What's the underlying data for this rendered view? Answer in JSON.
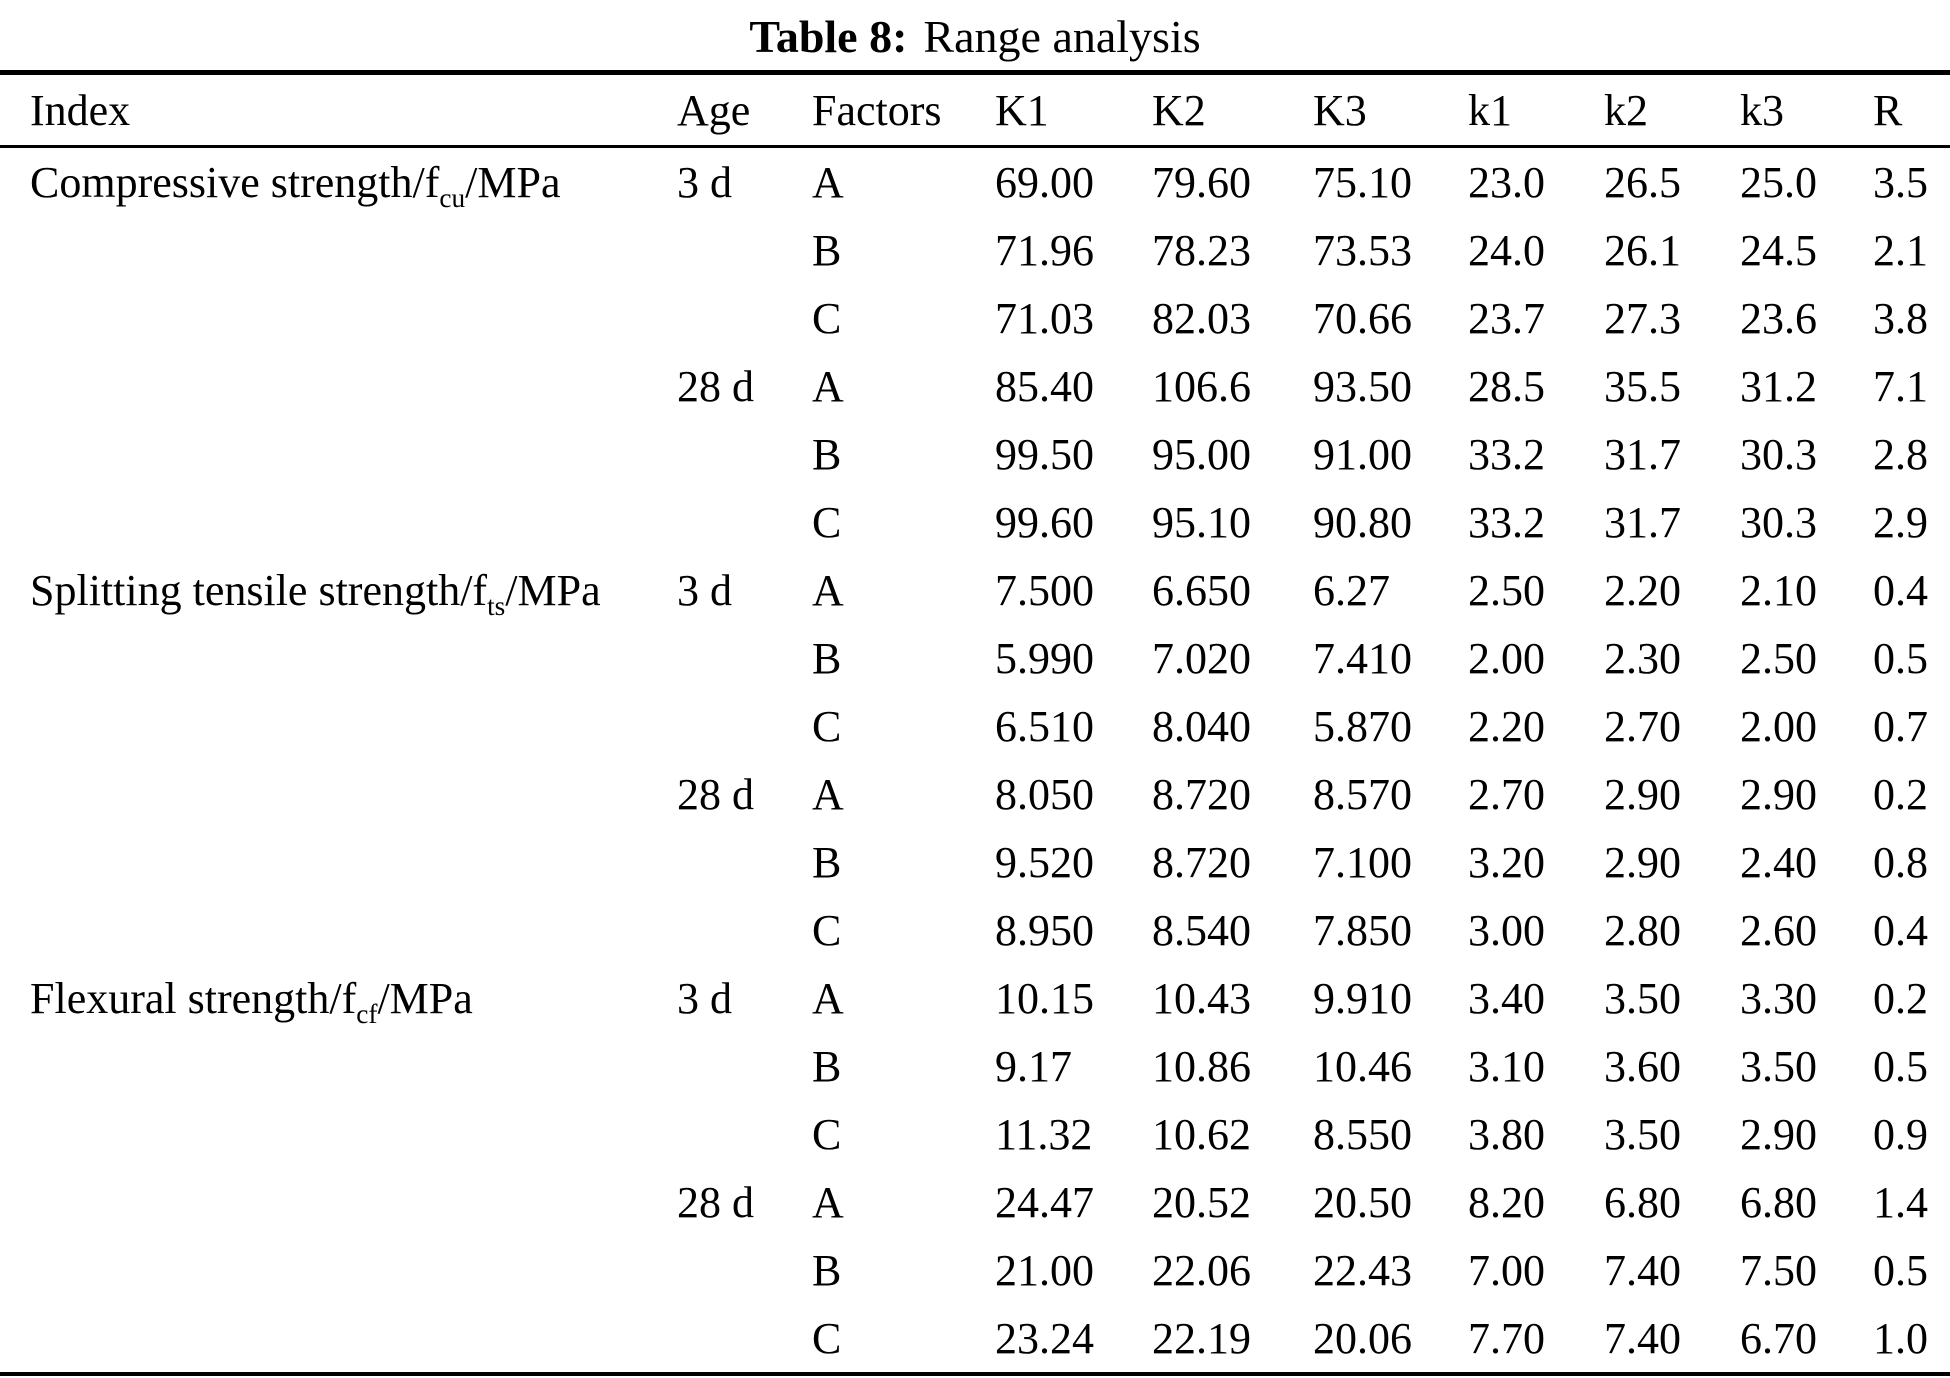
{
  "title": {
    "prefix": "Table 8:",
    "text": "Range analysis"
  },
  "table": {
    "headers": [
      "Index",
      "Age",
      "Factors",
      "K1",
      "K2",
      "K3",
      "k1",
      "k2",
      "k3",
      "R"
    ],
    "sections": [
      {
        "index": {
          "pre": "Compressive strength/f",
          "sub": "cu",
          "post": "/MPa"
        },
        "groups": [
          {
            "age": "3 d",
            "rows": [
              {
                "factor": "A",
                "values": [
                  "69.00",
                  "79.60",
                  "75.10",
                  "23.0",
                  "26.5",
                  "25.0",
                  "3.5"
                ]
              },
              {
                "factor": "B",
                "values": [
                  "71.96",
                  "78.23",
                  "73.53",
                  "24.0",
                  "26.1",
                  "24.5",
                  "2.1"
                ]
              },
              {
                "factor": "C",
                "values": [
                  "71.03",
                  "82.03",
                  "70.66",
                  "23.7",
                  "27.3",
                  "23.6",
                  "3.8"
                ]
              }
            ]
          },
          {
            "age": "28 d",
            "rows": [
              {
                "factor": "A",
                "values": [
                  "85.40",
                  "106.6",
                  "93.50",
                  "28.5",
                  "35.5",
                  "31.2",
                  "7.1"
                ]
              },
              {
                "factor": "B",
                "values": [
                  "99.50",
                  "95.00",
                  "91.00",
                  "33.2",
                  "31.7",
                  "30.3",
                  "2.8"
                ]
              },
              {
                "factor": "C",
                "values": [
                  "99.60",
                  "95.10",
                  "90.80",
                  "33.2",
                  "31.7",
                  "30.3",
                  "2.9"
                ]
              }
            ]
          }
        ]
      },
      {
        "index": {
          "pre": "Splitting tensile strength/f",
          "sub": "ts",
          "post": "/MPa"
        },
        "groups": [
          {
            "age": "3 d",
            "rows": [
              {
                "factor": "A",
                "values": [
                  "7.500",
                  "6.650",
                  "6.27",
                  "2.50",
                  "2.20",
                  "2.10",
                  "0.4"
                ]
              },
              {
                "factor": "B",
                "values": [
                  "5.990",
                  "7.020",
                  "7.410",
                  "2.00",
                  "2.30",
                  "2.50",
                  "0.5"
                ]
              },
              {
                "factor": "C",
                "values": [
                  "6.510",
                  "8.040",
                  "5.870",
                  "2.20",
                  "2.70",
                  "2.00",
                  "0.7"
                ]
              }
            ]
          },
          {
            "age": "28 d",
            "rows": [
              {
                "factor": "A",
                "values": [
                  "8.050",
                  "8.720",
                  "8.570",
                  "2.70",
                  "2.90",
                  "2.90",
                  "0.2"
                ]
              },
              {
                "factor": "B",
                "values": [
                  "9.520",
                  "8.720",
                  "7.100",
                  "3.20",
                  "2.90",
                  "2.40",
                  "0.8"
                ]
              },
              {
                "factor": "C",
                "values": [
                  "8.950",
                  "8.540",
                  "7.850",
                  "3.00",
                  "2.80",
                  "2.60",
                  "0.4"
                ]
              }
            ]
          }
        ]
      },
      {
        "index": {
          "pre": "Flexural strength/f",
          "sub": "cf",
          "post": "/MPa"
        },
        "groups": [
          {
            "age": "3 d",
            "rows": [
              {
                "factor": "A",
                "values": [
                  "10.15",
                  "10.43",
                  "9.910",
                  "3.40",
                  "3.50",
                  "3.30",
                  "0.2"
                ]
              },
              {
                "factor": "B",
                "values": [
                  "9.17",
                  "10.86",
                  "10.46",
                  "3.10",
                  "3.60",
                  "3.50",
                  "0.5"
                ]
              },
              {
                "factor": "C",
                "values": [
                  "11.32",
                  "10.62",
                  "8.550",
                  "3.80",
                  "3.50",
                  "2.90",
                  "0.9"
                ]
              }
            ]
          },
          {
            "age": "28 d",
            "rows": [
              {
                "factor": "A",
                "values": [
                  "24.47",
                  "20.52",
                  "20.50",
                  "8.20",
                  "6.80",
                  "6.80",
                  "1.4"
                ]
              },
              {
                "factor": "B",
                "values": [
                  "21.00",
                  "22.06",
                  "22.43",
                  "7.00",
                  "7.40",
                  "7.50",
                  "0.5"
                ]
              },
              {
                "factor": "C",
                "values": [
                  "23.24",
                  "22.19",
                  "20.06",
                  "7.70",
                  "7.40",
                  "6.70",
                  "1.0"
                ]
              }
            ]
          }
        ]
      }
    ]
  }
}
